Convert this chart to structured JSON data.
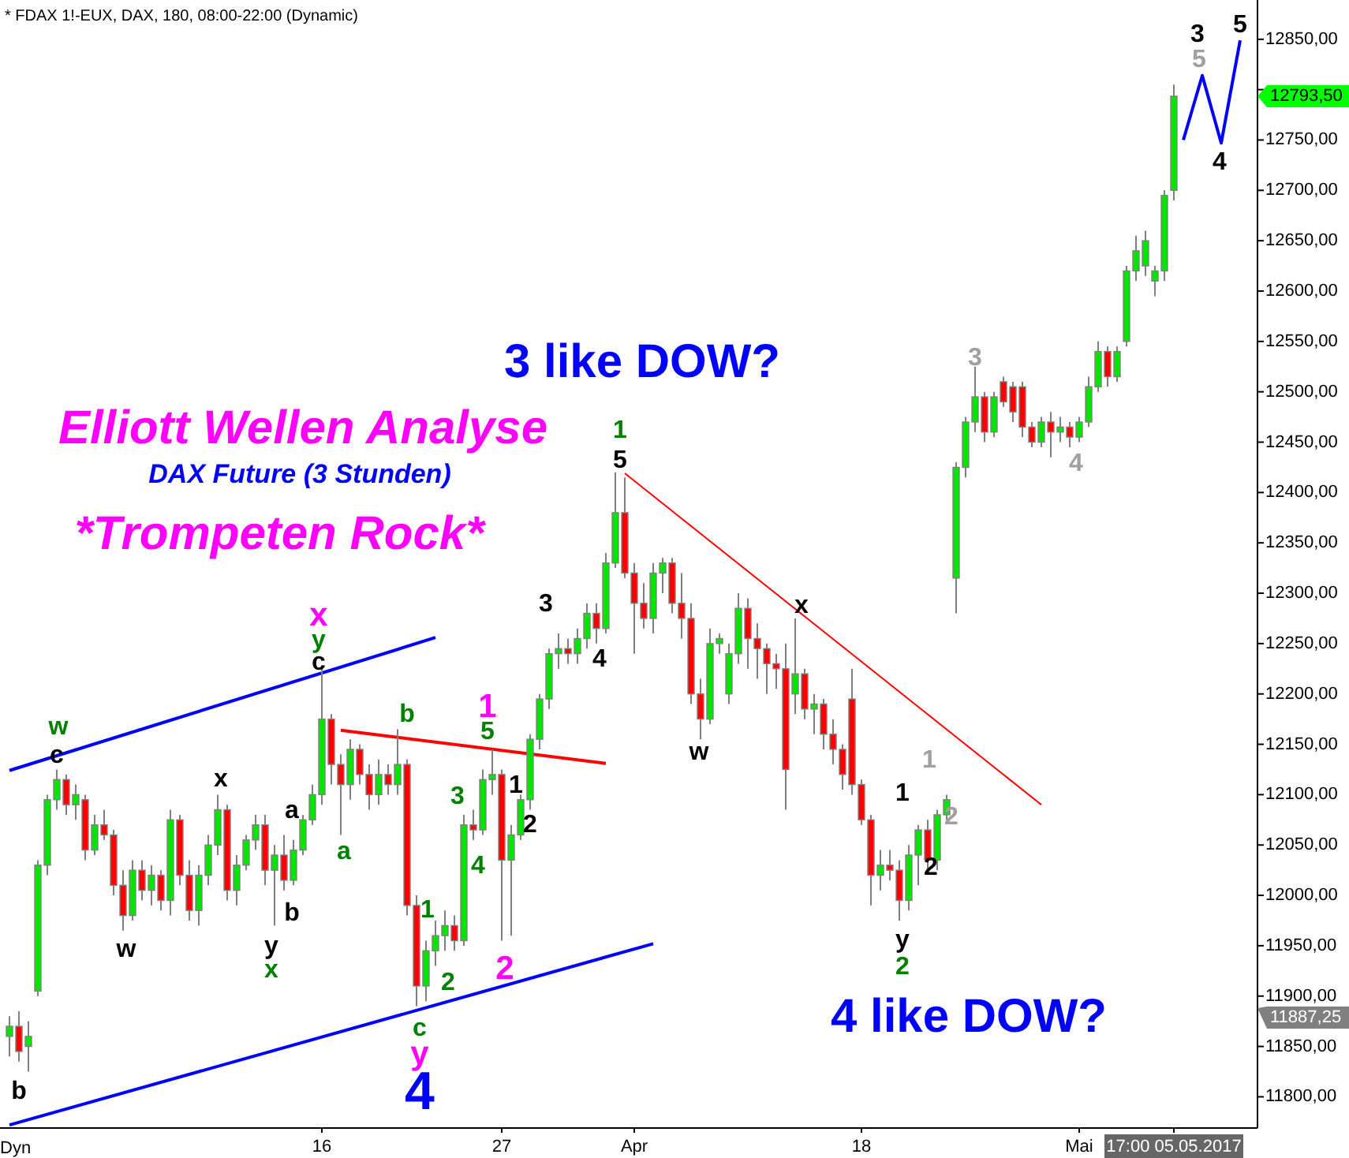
{
  "chart_data": {
    "type": "candlestick",
    "title": "Elliott Wellen Analyse",
    "subtitle": "DAX Future (3 Stunden)",
    "categories": [
      null,
      null,
      null,
      null,
      null,
      null,
      null,
      null,
      null,
      null,
      null,
      null,
      null,
      null,
      null,
      null,
      null,
      null,
      null,
      null,
      null,
      null,
      null,
      null,
      null,
      null,
      null,
      null,
      null,
      null,
      null,
      null,
      null,
      "16",
      null,
      null,
      null,
      null,
      null,
      null,
      null,
      null,
      null,
      null,
      null,
      null,
      null,
      null,
      null,
      null,
      null,
      null,
      "27",
      null,
      null,
      null,
      null,
      null,
      null,
      null,
      null,
      null,
      null,
      null,
      null,
      null,
      "Apr",
      null,
      null,
      null,
      null,
      null,
      null,
      null,
      null,
      null,
      null,
      null,
      null,
      null,
      null,
      null,
      null,
      null,
      null,
      null,
      null,
      null,
      null,
      null,
      "18",
      null,
      null,
      null,
      null,
      null,
      null,
      null,
      null,
      null,
      null,
      null,
      null,
      null,
      null,
      null,
      null,
      null,
      null,
      null,
      null,
      null,
      null,
      "Mai",
      null,
      null,
      null,
      null,
      null,
      null,
      null,
      null,
      null,
      "17:00 05.05.2017",
      null,
      null,
      null,
      null,
      null,
      null,
      null,
      null
    ],
    "ohlc": [
      [
        11860,
        11880,
        11840,
        11870
      ],
      [
        11870,
        11885,
        11835,
        11845
      ],
      [
        11850,
        11875,
        11825,
        11860
      ],
      [
        11905,
        12035,
        11900,
        12030
      ],
      [
        12030,
        12100,
        12020,
        12095
      ],
      [
        12095,
        12125,
        12085,
        12115
      ],
      [
        12115,
        12120,
        12080,
        12090
      ],
      [
        12090,
        12110,
        12075,
        12100
      ],
      [
        12095,
        12100,
        12035,
        12045
      ],
      [
        12045,
        12080,
        12040,
        12070
      ],
      [
        12070,
        12085,
        12055,
        12060
      ],
      [
        12060,
        12065,
        12000,
        12010
      ],
      [
        12010,
        12025,
        11965,
        11980
      ],
      [
        11980,
        12035,
        11975,
        12025
      ],
      [
        12025,
        12035,
        11995,
        12005
      ],
      [
        12005,
        12030,
        11990,
        12020
      ],
      [
        12020,
        12025,
        11985,
        11995
      ],
      [
        11995,
        12085,
        11980,
        12075
      ],
      [
        12075,
        12080,
        12010,
        12020
      ],
      [
        12020,
        12035,
        11975,
        11985
      ],
      [
        11985,
        12030,
        11970,
        12020
      ],
      [
        12020,
        12060,
        12010,
        12050
      ],
      [
        12050,
        12100,
        12040,
        12085
      ],
      [
        12085,
        12090,
        11995,
        12005
      ],
      [
        12005,
        12040,
        11990,
        12030
      ],
      [
        12030,
        12060,
        12025,
        12055
      ],
      [
        12055,
        12080,
        12045,
        12070
      ],
      [
        12070,
        12080,
        12010,
        12025
      ],
      [
        12025,
        12050,
        11970,
        12040
      ],
      [
        12040,
        12060,
        12005,
        12015
      ],
      [
        12015,
        12055,
        12010,
        12045
      ],
      [
        12045,
        12080,
        12040,
        12075
      ],
      [
        12075,
        12110,
        12070,
        12100
      ],
      [
        12100,
        12225,
        12090,
        12175
      ],
      [
        12175,
        12180,
        12110,
        12130
      ],
      [
        12130,
        12140,
        12060,
        12110
      ],
      [
        12110,
        12155,
        12095,
        12145
      ],
      [
        12145,
        12150,
        12110,
        12120
      ],
      [
        12120,
        12130,
        12085,
        12100
      ],
      [
        12100,
        12135,
        12090,
        12120
      ],
      [
        12120,
        12130,
        12100,
        12110
      ],
      [
        12110,
        12165,
        12100,
        12130
      ],
      [
        12130,
        12135,
        11980,
        11990
      ],
      [
        11990,
        12000,
        11890,
        11910
      ],
      [
        11910,
        11955,
        11895,
        11945
      ],
      [
        11945,
        11975,
        11930,
        11960
      ],
      [
        11960,
        11985,
        11945,
        11970
      ],
      [
        11970,
        11980,
        11945,
        11955
      ],
      [
        11955,
        12080,
        11950,
        12070
      ],
      [
        12070,
        12085,
        12055,
        12065
      ],
      [
        12065,
        12125,
        12060,
        12115
      ],
      [
        12115,
        12145,
        12100,
        12120
      ],
      [
        12120,
        12125,
        11955,
        12035
      ],
      [
        12035,
        12070,
        11960,
        12060
      ],
      [
        12060,
        12100,
        12055,
        12095
      ],
      [
        12095,
        12160,
        12085,
        12155
      ],
      [
        12155,
        12200,
        12145,
        12195
      ],
      [
        12195,
        12245,
        12185,
        12240
      ],
      [
        12240,
        12260,
        12225,
        12245
      ],
      [
        12245,
        12255,
        12230,
        12240
      ],
      [
        12240,
        12265,
        12230,
        12255
      ],
      [
        12255,
        12290,
        12245,
        12280
      ],
      [
        12280,
        12290,
        12250,
        12265
      ],
      [
        12265,
        12340,
        12260,
        12330
      ],
      [
        12330,
        12420,
        12325,
        12380
      ],
      [
        12380,
        12415,
        12315,
        12320
      ],
      [
        12320,
        12330,
        12240,
        12290
      ],
      [
        12290,
        12310,
        12265,
        12275
      ],
      [
        12275,
        12330,
        12260,
        12320
      ],
      [
        12320,
        12335,
        12300,
        12330
      ],
      [
        12330,
        12335,
        12280,
        12290
      ],
      [
        12290,
        12320,
        12255,
        12275
      ],
      [
        12275,
        12290,
        12190,
        12200
      ],
      [
        12200,
        12215,
        12155,
        12175
      ],
      [
        12175,
        12265,
        12170,
        12250
      ],
      [
        12250,
        12260,
        12240,
        12255
      ],
      [
        12200,
        12250,
        12190,
        12240
      ],
      [
        12240,
        12300,
        12230,
        12285
      ],
      [
        12285,
        12295,
        12225,
        12255
      ],
      [
        12255,
        12270,
        12215,
        12245
      ],
      [
        12245,
        12250,
        12200,
        12230
      ],
      [
        12230,
        12240,
        12205,
        12225
      ],
      [
        12225,
        12250,
        12085,
        12125
      ],
      [
        12200,
        12275,
        12180,
        12220
      ],
      [
        12220,
        12225,
        12175,
        12185
      ],
      [
        12185,
        12200,
        12160,
        12190
      ],
      [
        12190,
        12195,
        12145,
        12160
      ],
      [
        12160,
        12175,
        12130,
        12145
      ],
      [
        12145,
        12150,
        12105,
        12120
      ],
      [
        12195,
        12225,
        12100,
        12110
      ],
      [
        12110,
        12115,
        12070,
        12075
      ],
      [
        12075,
        12080,
        11990,
        12020
      ],
      [
        12020,
        12045,
        12005,
        12030
      ],
      [
        12030,
        12045,
        12015,
        12025
      ],
      [
        12025,
        12035,
        11975,
        11995
      ],
      [
        11995,
        12050,
        11985,
        12040
      ],
      [
        12040,
        12070,
        12010,
        12065
      ],
      [
        12065,
        12075,
        12025,
        12035
      ],
      [
        12035,
        12085,
        12025,
        12080
      ],
      [
        12080,
        12100,
        12075,
        12095
      ],
      [
        12315,
        12430,
        12280,
        12425
      ],
      [
        12425,
        12475,
        12415,
        12470
      ],
      [
        12470,
        12525,
        12460,
        12495
      ],
      [
        12495,
        12500,
        12450,
        12460
      ],
      [
        12460,
        12500,
        12455,
        12495
      ],
      [
        12510,
        12515,
        12485,
        12490
      ],
      [
        12505,
        12510,
        12470,
        12480
      ],
      [
        12505,
        12510,
        12455,
        12465
      ],
      [
        12465,
        12470,
        12445,
        12450
      ],
      [
        12450,
        12475,
        12445,
        12470
      ],
      [
        12470,
        12480,
        12435,
        12460
      ],
      [
        12460,
        12475,
        12450,
        12465
      ],
      [
        12465,
        12470,
        12445,
        12455
      ],
      [
        12455,
        12475,
        12450,
        12470
      ],
      [
        12470,
        12515,
        12465,
        12505
      ],
      [
        12505,
        12550,
        12500,
        12540
      ],
      [
        12540,
        12545,
        12505,
        12515
      ],
      [
        12515,
        12545,
        12510,
        12540
      ],
      [
        12550,
        12625,
        12545,
        12620
      ],
      [
        12620,
        12655,
        12610,
        12640
      ],
      [
        12625,
        12660,
        12615,
        12650
      ],
      [
        12610,
        12625,
        12595,
        12620
      ],
      [
        12620,
        12700,
        12610,
        12695
      ],
      [
        12700,
        12805,
        12690,
        12793.5
      ],
      null,
      null,
      null,
      null,
      null,
      null,
      null,
      null
    ],
    "series": [
      {
        "type": "line",
        "color": "#0000ff",
        "values": [
          12124,
          null,
          null,
          null,
          null,
          null,
          null,
          null,
          null,
          null,
          null,
          null,
          null,
          null,
          null,
          null,
          null,
          null,
          null,
          null,
          null,
          null,
          null,
          null,
          null,
          null,
          null,
          null,
          null,
          null,
          null,
          null,
          null,
          null,
          null,
          null,
          null,
          null,
          null,
          null,
          null,
          null,
          null,
          null,
          null,
          12256,
          null,
          null,
          null,
          null,
          null,
          null,
          null,
          null,
          null,
          null,
          null,
          null,
          null,
          null,
          null,
          null,
          null,
          null,
          null,
          null,
          null,
          null,
          null,
          null,
          null,
          null,
          null,
          null,
          null,
          null,
          null,
          null,
          null,
          null,
          null,
          null,
          null,
          null,
          null,
          null,
          null,
          null,
          null,
          null,
          null,
          null,
          null,
          null,
          null,
          null,
          null,
          null,
          null,
          null,
          null,
          null,
          null,
          null,
          null,
          null,
          null,
          null,
          null,
          null,
          null,
          null,
          null,
          null,
          null,
          null,
          null,
          null,
          null,
          null,
          null,
          null,
          null,
          null,
          null,
          null,
          null,
          null,
          null,
          null,
          null,
          null
        ]
      },
      {
        "type": "line",
        "color": "#0000ff",
        "values": [
          11772,
          null,
          null,
          null,
          null,
          null,
          null,
          null,
          null,
          null,
          null,
          null,
          null,
          null,
          null,
          null,
          null,
          null,
          null,
          null,
          null,
          null,
          null,
          null,
          null,
          null,
          null,
          null,
          null,
          null,
          null,
          null,
          null,
          null,
          null,
          null,
          null,
          null,
          null,
          null,
          null,
          null,
          null,
          null,
          null,
          null,
          null,
          null,
          null,
          null,
          null,
          null,
          null,
          null,
          null,
          null,
          null,
          null,
          null,
          null,
          null,
          null,
          null,
          null,
          null,
          null,
          null,
          null,
          11952,
          null,
          null,
          null,
          null,
          null,
          null,
          null,
          null,
          null,
          null,
          null,
          null,
          null,
          null,
          null,
          null,
          null,
          null,
          null,
          null,
          null,
          null,
          null,
          null,
          null,
          null,
          null,
          null,
          null,
          null,
          null,
          null,
          null,
          null,
          null,
          null,
          null,
          null,
          null,
          null,
          null,
          null,
          null,
          null,
          null,
          null,
          null,
          null,
          null,
          null,
          null,
          null,
          null,
          null,
          null,
          null,
          null,
          null,
          null,
          null,
          null,
          null,
          null
        ]
      },
      {
        "type": "line",
        "color": "#ff0000",
        "values": [
          null,
          null,
          null,
          null,
          null,
          null,
          null,
          null,
          null,
          null,
          null,
          null,
          null,
          null,
          null,
          null,
          null,
          null,
          null,
          null,
          null,
          null,
          null,
          null,
          null,
          null,
          null,
          null,
          null,
          null,
          null,
          null,
          null,
          null,
          null,
          12164,
          null,
          null,
          null,
          null,
          null,
          null,
          null,
          null,
          null,
          null,
          null,
          null,
          null,
          null,
          null,
          null,
          null,
          null,
          null,
          null,
          null,
          null,
          null,
          null,
          null,
          null,
          null,
          12131,
          null,
          null,
          null,
          null,
          null,
          null,
          null,
          null,
          null,
          null,
          null,
          null,
          null,
          null,
          null,
          null,
          null,
          null,
          null,
          null,
          null,
          null,
          null,
          null,
          null,
          null,
          null,
          null,
          null,
          null,
          null,
          null,
          null,
          null,
          null,
          null,
          null,
          null,
          null,
          null,
          null,
          null,
          null,
          null,
          null,
          null,
          null,
          null,
          null,
          null,
          null,
          null,
          null,
          null,
          null,
          null,
          null,
          null,
          null,
          null,
          null,
          null,
          null,
          null,
          null,
          null,
          null,
          null
        ]
      },
      {
        "type": "line",
        "color": "#ff0000",
        "values": [
          null,
          null,
          null,
          null,
          null,
          null,
          null,
          null,
          null,
          null,
          null,
          null,
          null,
          null,
          null,
          null,
          null,
          null,
          null,
          null,
          null,
          null,
          null,
          null,
          null,
          null,
          null,
          null,
          null,
          null,
          null,
          null,
          null,
          null,
          null,
          null,
          null,
          null,
          null,
          null,
          null,
          null,
          null,
          null,
          null,
          null,
          null,
          null,
          null,
          null,
          null,
          null,
          null,
          null,
          null,
          null,
          null,
          null,
          null,
          null,
          null,
          null,
          null,
          null,
          null,
          12419,
          null,
          null,
          null,
          null,
          null,
          null,
          null,
          null,
          null,
          null,
          null,
          null,
          null,
          null,
          null,
          null,
          null,
          null,
          null,
          null,
          null,
          null,
          null,
          null,
          null,
          null,
          null,
          null,
          null,
          null,
          null,
          null,
          null,
          null,
          null,
          null,
          null,
          null,
          null,
          null,
          null,
          null,
          null,
          12090,
          null,
          null,
          null,
          null,
          null,
          null,
          null,
          null,
          null,
          null,
          null,
          null,
          null,
          null,
          null,
          null,
          null,
          null,
          null,
          null,
          null,
          null
        ]
      },
      {
        "type": "line",
        "color": "#0000ff",
        "values": [
          null,
          null,
          null,
          null,
          null,
          null,
          null,
          null,
          null,
          null,
          null,
          null,
          null,
          null,
          null,
          null,
          null,
          null,
          null,
          null,
          null,
          null,
          null,
          null,
          null,
          null,
          null,
          null,
          null,
          null,
          null,
          null,
          null,
          null,
          null,
          null,
          null,
          null,
          null,
          null,
          null,
          null,
          null,
          null,
          null,
          null,
          null,
          null,
          null,
          null,
          null,
          null,
          null,
          null,
          null,
          null,
          null,
          null,
          null,
          null,
          null,
          null,
          null,
          null,
          null,
          null,
          null,
          null,
          null,
          null,
          null,
          null,
          null,
          null,
          null,
          null,
          null,
          null,
          null,
          null,
          null,
          null,
          null,
          null,
          null,
          null,
          null,
          null,
          null,
          null,
          null,
          null,
          null,
          null,
          null,
          null,
          null,
          null,
          null,
          null,
          null,
          null,
          null,
          null,
          null,
          null,
          null,
          null,
          null,
          null,
          null,
          null,
          null,
          null,
          null,
          null,
          null,
          null,
          null,
          null,
          null,
          null,
          null,
          null,
          12750,
          null,
          12814,
          null,
          12747,
          null,
          12849,
          null
        ]
      }
    ],
    "ylim": [
      11769,
      12889
    ],
    "yticks": [
      {
        "value": 11800,
        "label": "11800,00"
      },
      {
        "value": 11850,
        "label": "11850,00"
      },
      {
        "value": 11900,
        "label": "11900,00"
      },
      {
        "value": 11950,
        "label": "11950,00"
      },
      {
        "value": 12000,
        "label": "12000,00"
      },
      {
        "value": 12050,
        "label": "12050,00"
      },
      {
        "value": 12100,
        "label": "12100,00"
      },
      {
        "value": 12150,
        "label": "12150,00"
      },
      {
        "value": 12200,
        "label": "12200,00"
      },
      {
        "value": 12250,
        "label": "12250,00"
      },
      {
        "value": 12300,
        "label": "12300,00"
      },
      {
        "value": 12350,
        "label": "12350,00"
      },
      {
        "value": 12400,
        "label": "12400,00"
      },
      {
        "value": 12450,
        "label": "12450,00"
      },
      {
        "value": 12500,
        "label": "12500,00"
      },
      {
        "value": 12550,
        "label": "12550,00"
      },
      {
        "value": 12600,
        "label": "12600,00"
      },
      {
        "value": 12650,
        "label": "12650,00"
      },
      {
        "value": 12700,
        "label": "12700,00"
      },
      {
        "value": 12750,
        "label": "12750,00"
      },
      {
        "value": 12800,
        "label": null
      },
      {
        "value": 12850,
        "label": "12850,00"
      }
    ],
    "annotations": [
      "* FDAX 1!-EUX, DAX, 180, 08:00-22:00 (Dynamic)",
      "*Trompeten Rock*",
      "3 like DOW?",
      "4 like DOW?",
      "Dyn",
      "12793,50",
      "11887,25",
      "b",
      "c",
      "w",
      "w",
      "x",
      "a",
      "b",
      "y",
      "x",
      "c",
      "y",
      "x",
      "a",
      "b",
      "1",
      "2",
      "c",
      "y",
      "4",
      "3",
      "4",
      "5",
      "1",
      "1",
      "2",
      "2",
      "3",
      "4",
      "5",
      "1",
      "w",
      "x",
      "1",
      "1",
      "2",
      "2",
      "y",
      "2",
      "3",
      "4",
      "3",
      "5",
      "4",
      "5"
    ]
  }
}
